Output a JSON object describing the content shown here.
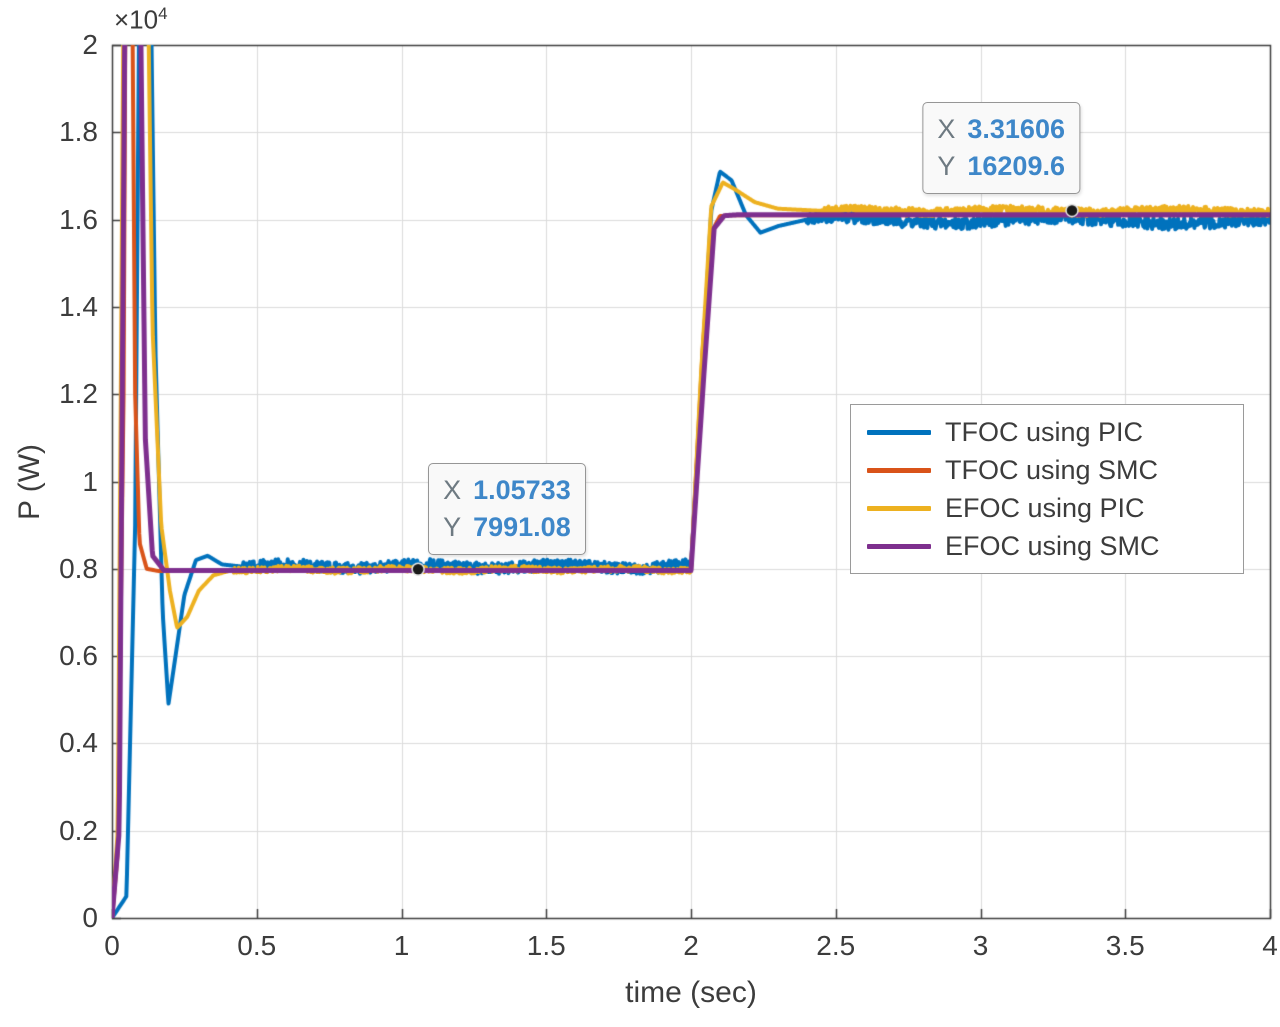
{
  "chart_data": {
    "type": "line",
    "title": "",
    "xlabel": "time (sec)",
    "ylabel": "P (W)",
    "y_exponent": {
      "multiplier": "×10",
      "exponent": "4"
    },
    "xlim": [
      0,
      4
    ],
    "ylim": [
      0,
      20000
    ],
    "grid": true,
    "legend_position": "middle-right",
    "xtick_values": [
      0,
      0.5,
      1,
      1.5,
      2,
      2.5,
      3,
      3.5,
      4
    ],
    "xtick_labels": [
      "0",
      "0.5",
      "1",
      "1.5",
      "2",
      "2.5",
      "3",
      "3.5",
      "4"
    ],
    "ytick_values": [
      0,
      2000,
      4000,
      6000,
      8000,
      10000,
      12000,
      14000,
      16000,
      18000,
      20000
    ],
    "ytick_labels": [
      "0",
      "0.2",
      "0.4",
      "0.6",
      "0.8",
      "1",
      "1.2",
      "1.4",
      "1.6",
      "1.8",
      "2"
    ],
    "colors": {
      "grid": "#dbdbdb",
      "axis": "#3c3c3c",
      "datatip_value": "#3e87c9",
      "datatip_label": "#6e7a82",
      "marker": "#1a1a1a"
    },
    "series": [
      {
        "name": "TFOC using PIC",
        "color": "#0072BD",
        "width": 4,
        "anchors": [
          [
            0,
            0
          ],
          [
            0.05,
            500
          ],
          [
            0.08,
            9000
          ],
          [
            0.1,
            26000
          ],
          [
            0.125,
            26000
          ],
          [
            0.15,
            13000
          ],
          [
            0.175,
            7000
          ],
          [
            0.195,
            4900
          ],
          [
            0.215,
            5800
          ],
          [
            0.25,
            7400
          ],
          [
            0.29,
            8200
          ],
          [
            0.33,
            8300
          ],
          [
            0.38,
            8100
          ],
          [
            0.45,
            8050
          ],
          [
            2.0,
            8050
          ],
          [
            2.03,
            11500
          ],
          [
            2.07,
            16200
          ],
          [
            2.1,
            17100
          ],
          [
            2.14,
            16900
          ],
          [
            2.19,
            16100
          ],
          [
            2.24,
            15700
          ],
          [
            2.3,
            15850
          ],
          [
            2.4,
            16000
          ],
          [
            4,
            15950
          ]
        ],
        "noise": [
          {
            "from": 0.45,
            "to": 2.0,
            "amp": 130,
            "slow_amp": 45,
            "slow_freq": 2.1
          },
          {
            "from": 2.4,
            "to": 4.0,
            "amp": 140,
            "slow_amp": 70,
            "slow_freq": 1.3
          }
        ]
      },
      {
        "name": "TFOC using SMC",
        "color": "#D95319",
        "width": 4,
        "anchors": [
          [
            0,
            0
          ],
          [
            0.02,
            1500
          ],
          [
            0.04,
            12000
          ],
          [
            0.05,
            26000
          ],
          [
            0.065,
            26000
          ],
          [
            0.08,
            12000
          ],
          [
            0.095,
            8600
          ],
          [
            0.12,
            8000
          ],
          [
            0.16,
            7950
          ],
          [
            2.0,
            7950
          ],
          [
            2.04,
            13000
          ],
          [
            2.07,
            15700
          ],
          [
            2.1,
            16080
          ],
          [
            2.14,
            16100
          ],
          [
            4,
            16100
          ]
        ],
        "noise": []
      },
      {
        "name": "EFOC using PIC",
        "color": "#EDB120",
        "width": 4,
        "anchors": [
          [
            0,
            0
          ],
          [
            0.02,
            2000
          ],
          [
            0.045,
            26000
          ],
          [
            0.115,
            26000
          ],
          [
            0.14,
            13500
          ],
          [
            0.17,
            9000
          ],
          [
            0.2,
            7500
          ],
          [
            0.225,
            6650
          ],
          [
            0.26,
            6900
          ],
          [
            0.3,
            7500
          ],
          [
            0.35,
            7850
          ],
          [
            0.42,
            7980
          ],
          [
            2.0,
            7980
          ],
          [
            2.035,
            12500
          ],
          [
            2.07,
            16300
          ],
          [
            2.11,
            16850
          ],
          [
            2.15,
            16700
          ],
          [
            2.22,
            16400
          ],
          [
            2.3,
            16250
          ],
          [
            2.45,
            16200
          ],
          [
            4,
            16200
          ]
        ],
        "noise": [
          {
            "from": 0.42,
            "to": 2.0,
            "amp": 70,
            "slow_amp": 25,
            "slow_freq": 2.6
          },
          {
            "from": 2.45,
            "to": 4.0,
            "amp": 90,
            "slow_amp": 30,
            "slow_freq": 1.8
          }
        ]
      },
      {
        "name": "EFOC using SMC",
        "color": "#7E2F8E",
        "width": 5,
        "anchors": [
          [
            0,
            0
          ],
          [
            0.025,
            2000
          ],
          [
            0.05,
            26000
          ],
          [
            0.09,
            26000
          ],
          [
            0.115,
            11000
          ],
          [
            0.14,
            8300
          ],
          [
            0.18,
            7960
          ],
          [
            2.0,
            7960
          ],
          [
            2.045,
            12500
          ],
          [
            2.08,
            15800
          ],
          [
            2.115,
            16090
          ],
          [
            2.16,
            16110
          ],
          [
            4,
            16110
          ]
        ],
        "noise": []
      }
    ],
    "datatips": [
      {
        "x": 1.05733,
        "y": 7991.08,
        "x_label": "X",
        "y_label": "Y",
        "x_value": "1.05733",
        "y_value": "7991.08",
        "anchor": "above-right"
      },
      {
        "x": 3.31606,
        "y": 16209.6,
        "x_label": "X",
        "y_label": "Y",
        "x_value": "3.31606",
        "y_value": "16209.6",
        "anchor": "above-left"
      }
    ]
  }
}
